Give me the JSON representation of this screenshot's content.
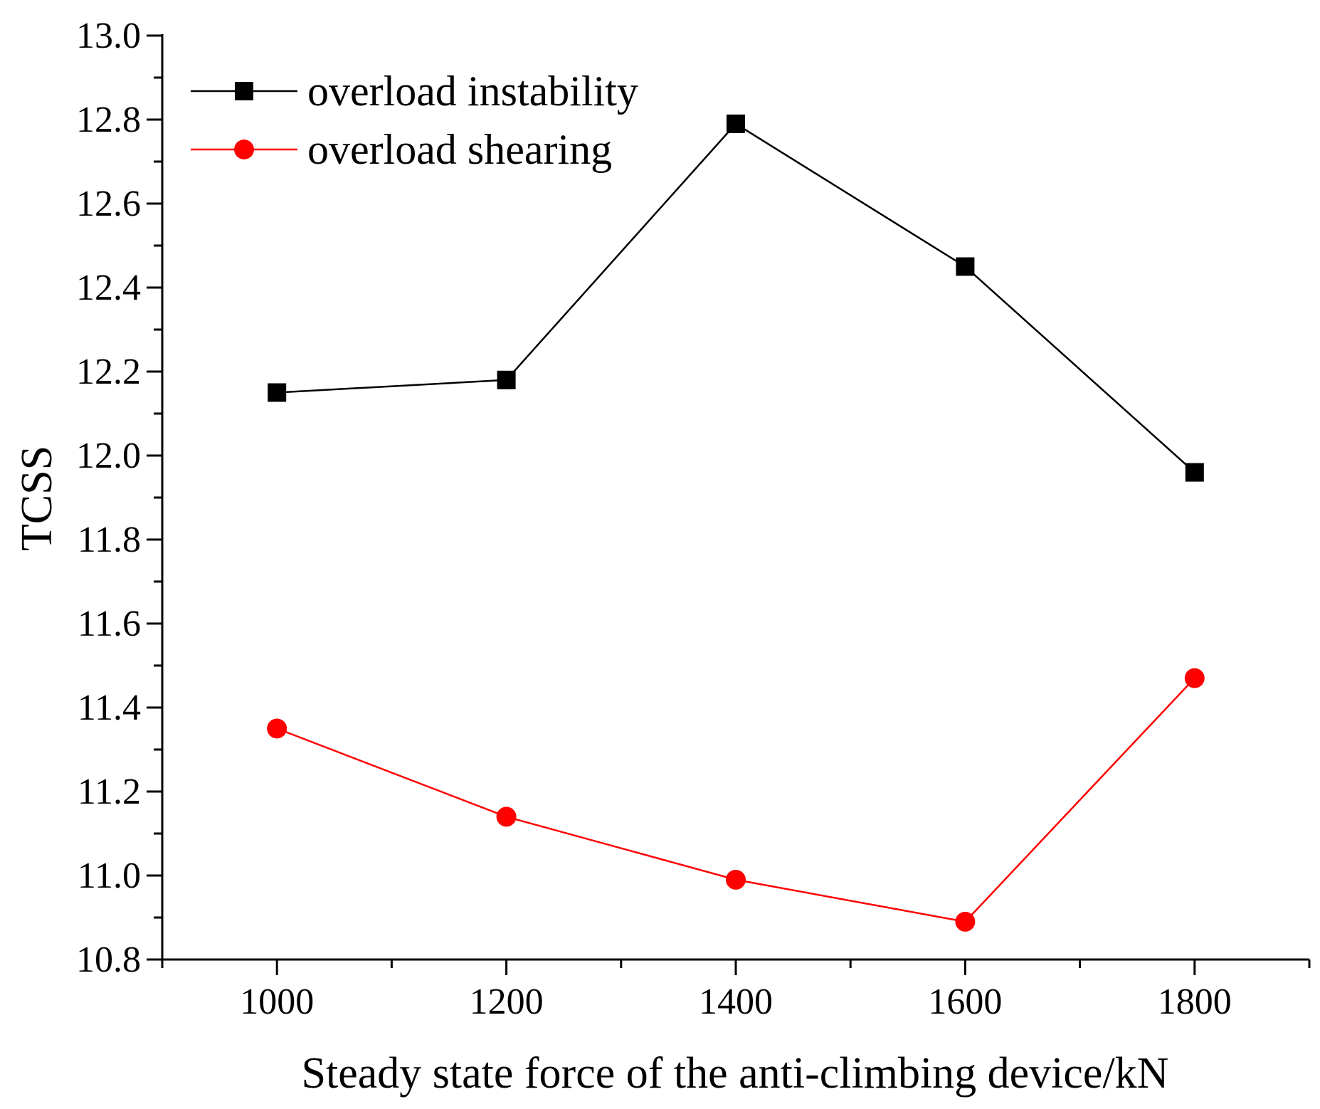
{
  "chart_data": {
    "type": "line",
    "title": "",
    "xlabel": "Steady state force of the anti-climbing device/kN",
    "ylabel": "TCSS",
    "x": [
      1000,
      1200,
      1400,
      1600,
      1800
    ],
    "xlim": [
      900,
      1900
    ],
    "ylim": [
      10.8,
      13.0
    ],
    "xticks": [
      1000,
      1200,
      1400,
      1600,
      1800
    ],
    "xtick_labels": [
      "1000",
      "1200",
      "1400",
      "1600",
      "1800"
    ],
    "yticks": [
      10.8,
      11.0,
      11.2,
      11.4,
      11.6,
      11.8,
      12.0,
      12.2,
      12.4,
      12.6,
      12.8,
      13.0
    ],
    "ytick_labels": [
      "10.8",
      "11.0",
      "11.2",
      "11.4",
      "11.6",
      "11.8",
      "12.0",
      "12.2",
      "12.4",
      "12.6",
      "12.8",
      "13.0"
    ],
    "grid": false,
    "legend_position": "top-left",
    "series": [
      {
        "name": "overload instability",
        "color": "#000000",
        "marker": "square",
        "values": [
          12.15,
          12.18,
          12.79,
          12.45,
          11.96
        ]
      },
      {
        "name": "overload shearing",
        "color": "#ff0000",
        "marker": "circle",
        "values": [
          11.35,
          11.14,
          10.99,
          10.89,
          11.47
        ]
      }
    ]
  }
}
